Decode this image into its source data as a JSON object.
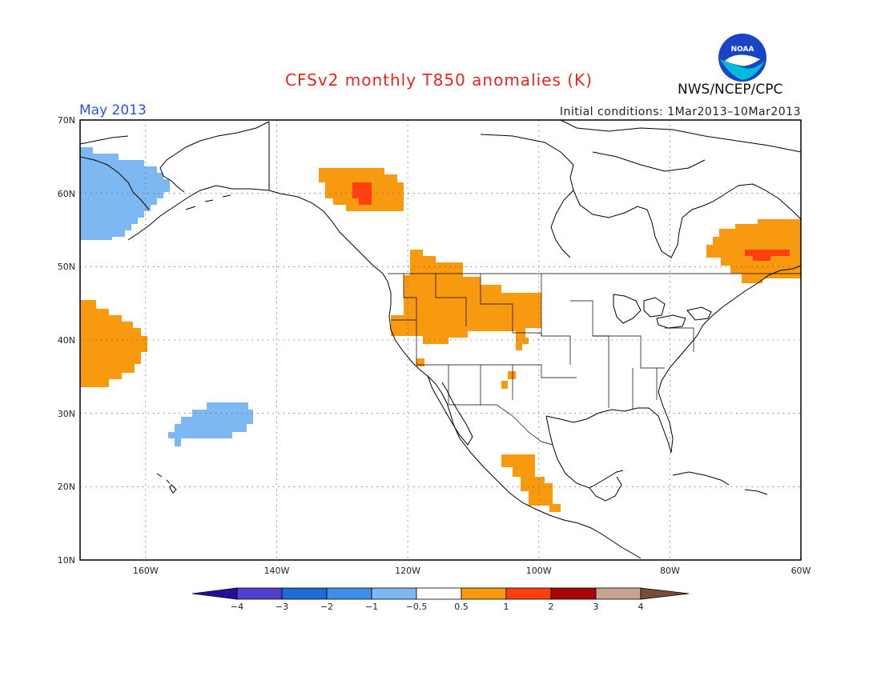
{
  "header": {
    "title": "CFSv2 monthly T850 anomalies (K)",
    "period": "May 2013",
    "initial_conditions": "Initial conditions: 1Mar2013–10Mar2013",
    "organization": "NWS/NCEP/CPC",
    "logo_text": "NOAA"
  },
  "axes": {
    "lat_labels": [
      "70N",
      "60N",
      "50N",
      "40N",
      "30N",
      "20N",
      "10N"
    ],
    "lon_labels": [
      "160W",
      "140W",
      "120W",
      "100W",
      "80W",
      "60W"
    ]
  },
  "colorbar": {
    "labels": [
      "−4",
      "−3",
      "−2",
      "−1",
      "−0.5",
      "0.5",
      "1",
      "2",
      "3",
      "4"
    ],
    "colors": [
      "#2a0c9a",
      "#4f3fcf",
      "#1f6ad6",
      "#3f8fe6",
      "#7db8f2",
      "#ffffff",
      "#f89a0f",
      "#ff3f12",
      "#a8070a",
      "#c8a292",
      "#7a4a3a"
    ]
  },
  "map": {
    "extent": {
      "lon_min": -170,
      "lon_max": -60,
      "lat_min": 10,
      "lat_max": 70
    },
    "colors": {
      "warm1": "#f89a0f",
      "warm2": "#ff3f12",
      "cool1": "#7db8f2",
      "coast": "#000000",
      "grid": "#666666"
    }
  }
}
